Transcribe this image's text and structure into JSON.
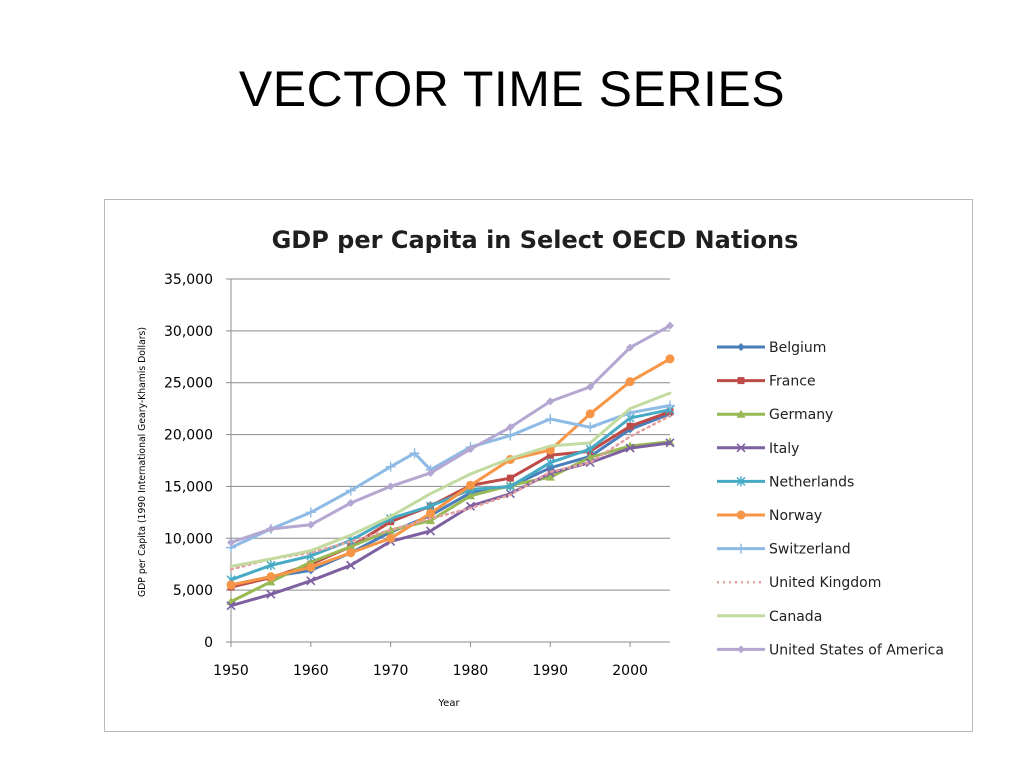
{
  "slide": {
    "title": "VECTOR TIME SERIES"
  },
  "chart_data": {
    "type": "line",
    "title": "GDP per Capita in Select OECD Nations",
    "xlabel": "Year",
    "ylabel": "GDP per Capita (1990 International Geary-Khamis Dollars)",
    "xlim": [
      1950,
      2005
    ],
    "ylim": [
      0,
      35000
    ],
    "x_ticks": [
      "1950",
      "1960",
      "1970",
      "1980",
      "1990",
      "2000"
    ],
    "y_ticks": [
      "0",
      "5,000",
      "10,000",
      "15,000",
      "20,000",
      "25,000",
      "30,000",
      "35,000"
    ],
    "grid": "horizontal",
    "legend": "right",
    "series": [
      {
        "name": "Belgium",
        "color": "#4a7ebb",
        "marker": "diamond",
        "points": [
          [
            1950,
            5500
          ],
          [
            1955,
            6300
          ],
          [
            1960,
            6900
          ],
          [
            1965,
            8600
          ],
          [
            1970,
            10600
          ],
          [
            1975,
            12200
          ],
          [
            1980,
            14400
          ],
          [
            1985,
            15000
          ],
          [
            1990,
            16800
          ],
          [
            1995,
            17900
          ],
          [
            2000,
            20500
          ],
          [
            2005,
            22000
          ]
        ]
      },
      {
        "name": "France",
        "color": "#be4b48",
        "marker": "square",
        "points": [
          [
            1950,
            5300
          ],
          [
            1955,
            6200
          ],
          [
            1960,
            7500
          ],
          [
            1965,
            9200
          ],
          [
            1970,
            11600
          ],
          [
            1975,
            13100
          ],
          [
            1980,
            15100
          ],
          [
            1985,
            15800
          ],
          [
            1990,
            18000
          ],
          [
            1995,
            18400
          ],
          [
            2000,
            20800
          ],
          [
            2005,
            22200
          ]
        ]
      },
      {
        "name": "Germany",
        "color": "#98b954",
        "marker": "triangle",
        "points": [
          [
            1950,
            3900
          ],
          [
            1955,
            5800
          ],
          [
            1960,
            7700
          ],
          [
            1965,
            9200
          ],
          [
            1970,
            10800
          ],
          [
            1975,
            11700
          ],
          [
            1980,
            14100
          ],
          [
            1985,
            15100
          ],
          [
            1990,
            15900
          ],
          [
            1995,
            17800
          ],
          [
            2000,
            18900
          ],
          [
            2005,
            19300
          ]
        ]
      },
      {
        "name": "Italy",
        "color": "#7d60a0",
        "marker": "x",
        "points": [
          [
            1950,
            3500
          ],
          [
            1955,
            4600
          ],
          [
            1960,
            5900
          ],
          [
            1965,
            7400
          ],
          [
            1970,
            9700
          ],
          [
            1975,
            10700
          ],
          [
            1980,
            13100
          ],
          [
            1985,
            14300
          ],
          [
            1990,
            16300
          ],
          [
            1995,
            17300
          ],
          [
            2000,
            18700
          ],
          [
            2005,
            19200
          ]
        ]
      },
      {
        "name": "Netherlands",
        "color": "#46aac5",
        "marker": "star",
        "points": [
          [
            1950,
            6000
          ],
          [
            1955,
            7400
          ],
          [
            1960,
            8300
          ],
          [
            1965,
            9800
          ],
          [
            1970,
            11900
          ],
          [
            1975,
            13100
          ],
          [
            1980,
            14700
          ],
          [
            1985,
            15000
          ],
          [
            1990,
            17300
          ],
          [
            1995,
            18600
          ],
          [
            2000,
            21600
          ],
          [
            2005,
            22400
          ]
        ]
      },
      {
        "name": "Norway",
        "color": "#f79646",
        "marker": "circle",
        "points": [
          [
            1950,
            5500
          ],
          [
            1955,
            6300
          ],
          [
            1960,
            7200
          ],
          [
            1965,
            8600
          ],
          [
            1970,
            10000
          ],
          [
            1975,
            12400
          ],
          [
            1980,
            15100
          ],
          [
            1985,
            17600
          ],
          [
            1990,
            18500
          ],
          [
            1995,
            22000
          ],
          [
            2000,
            25100
          ],
          [
            2005,
            27300
          ]
        ]
      },
      {
        "name": "Switzerland",
        "color": "#8ebbe5",
        "marker": "plus",
        "points": [
          [
            1950,
            9100
          ],
          [
            1955,
            10900
          ],
          [
            1960,
            12500
          ],
          [
            1965,
            14600
          ],
          [
            1970,
            16900
          ],
          [
            1973,
            18200
          ],
          [
            1975,
            16600
          ],
          [
            1980,
            18800
          ],
          [
            1985,
            19900
          ],
          [
            1990,
            21500
          ],
          [
            1995,
            20700
          ],
          [
            2000,
            22100
          ],
          [
            2005,
            22800
          ]
        ]
      },
      {
        "name": "United Kingdom",
        "color": "#e3a0a0",
        "marker": "dot",
        "points": [
          [
            1950,
            7000
          ],
          [
            1955,
            8000
          ],
          [
            1960,
            8600
          ],
          [
            1965,
            9700
          ],
          [
            1970,
            10800
          ],
          [
            1975,
            11900
          ],
          [
            1980,
            12900
          ],
          [
            1985,
            14200
          ],
          [
            1990,
            16400
          ],
          [
            1995,
            17300
          ],
          [
            2000,
            19800
          ],
          [
            2005,
            21800
          ]
        ]
      },
      {
        "name": "Canada",
        "color": "#c3dba0",
        "marker": "none",
        "points": [
          [
            1950,
            7300
          ],
          [
            1955,
            8000
          ],
          [
            1960,
            8800
          ],
          [
            1965,
            10300
          ],
          [
            1970,
            12100
          ],
          [
            1975,
            14300
          ],
          [
            1980,
            16200
          ],
          [
            1985,
            17700
          ],
          [
            1990,
            18900
          ],
          [
            1995,
            19200
          ],
          [
            2000,
            22500
          ],
          [
            2005,
            24000
          ]
        ]
      },
      {
        "name": "United States of America",
        "color": "#b4a7d1",
        "marker": "diamond",
        "points": [
          [
            1950,
            9600
          ],
          [
            1955,
            10900
          ],
          [
            1960,
            11300
          ],
          [
            1965,
            13400
          ],
          [
            1970,
            15000
          ],
          [
            1975,
            16300
          ],
          [
            1980,
            18600
          ],
          [
            1985,
            20700
          ],
          [
            1990,
            23200
          ],
          [
            1995,
            24600
          ],
          [
            2000,
            28400
          ],
          [
            2005,
            30500
          ]
        ]
      }
    ]
  }
}
